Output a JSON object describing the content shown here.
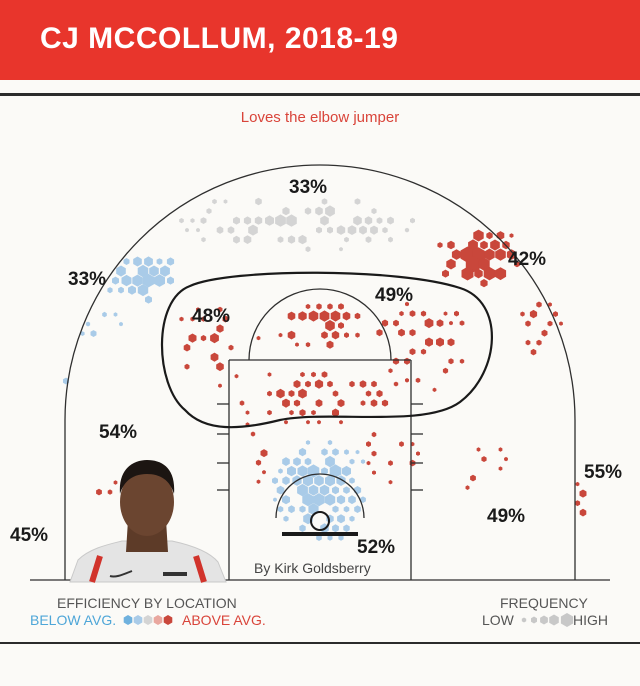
{
  "header": {
    "title": "CJ  MCCOLLUM, 2018-19"
  },
  "subtitle": "Loves the elbow jumper",
  "credit": "By Kirk Goldsberry",
  "colors": {
    "header_bg": "#e8352c",
    "above_avg": "#c9473b",
    "below_avg": "#a9cbe8",
    "neutral": "#d4d4d4"
  },
  "chart_data": {
    "type": "heatmap",
    "title": "CJ  MCCOLLUM, 2018-19",
    "subtitle": "Loves the elbow jumper",
    "zones": [
      {
        "zone": "top-of-key-three",
        "efficiency": "33%",
        "rating": "average"
      },
      {
        "zone": "left-wing-three",
        "efficiency": "33%",
        "rating": "below average"
      },
      {
        "zone": "right-wing-three",
        "efficiency": "42%",
        "rating": "above average"
      },
      {
        "zone": "left-elbow-midrange",
        "efficiency": "48%",
        "rating": "above average"
      },
      {
        "zone": "top-midrange",
        "efficiency": "49%",
        "rating": "above average"
      },
      {
        "zone": "left-baseline-midrange",
        "efficiency": "54%",
        "rating": "above average"
      },
      {
        "zone": "left-corner-three",
        "efficiency": "45%",
        "rating": "above average"
      },
      {
        "zone": "right-corner-three",
        "efficiency": "55%",
        "rating": "above average"
      },
      {
        "zone": "right-baseline-midrange",
        "efficiency": "49%",
        "rating": "above average"
      },
      {
        "zone": "restricted-area",
        "efficiency": "52%",
        "rating": "below average"
      }
    ],
    "legend": {
      "efficiency": {
        "heading": "EFFICIENCY BY LOCATION",
        "below": "BELOW AVG.",
        "above": "ABOVE AVG.",
        "scale_colors": [
          "#6fb1de",
          "#a9cbe8",
          "#d4d4d4",
          "#e9a79f",
          "#c9473b"
        ]
      },
      "frequency": {
        "heading": "FREQUENCY",
        "low": "LOW",
        "high": "HIGH"
      }
    }
  }
}
